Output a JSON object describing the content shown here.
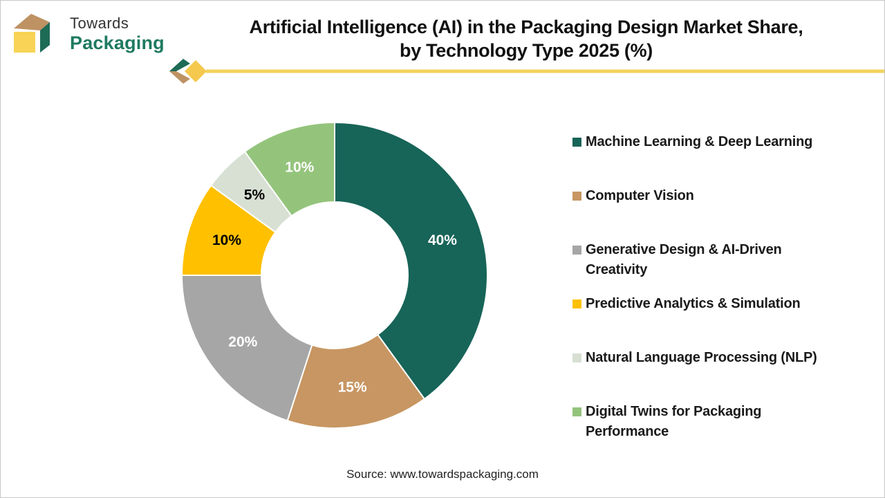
{
  "logo": {
    "towards": "Towards",
    "packaging": "Packaging",
    "colors": {
      "box_top": "#BE9263",
      "box_side": "#1E6B56",
      "box_front": "#F8D355",
      "wordmark_green": "#1E7A60"
    }
  },
  "header": {
    "title_line1": "Artificial Intelligence (AI) in the Packaging Design Market Share,",
    "title_line2": "by Technology Type 2025 (%)",
    "underline_color": "#F2D35C"
  },
  "chart_data": {
    "type": "pie",
    "subtype": "donut",
    "title": "Artificial Intelligence (AI) in the Packaging Design Market Share, by Technology Type 2025 (%)",
    "unit": "%",
    "rotation_start": "top",
    "direction": "clockwise",
    "legend_position": "right",
    "slices": [
      {
        "label": "Machine Learning & Deep Learning",
        "value": 40,
        "data_label": "40%",
        "color": "#176458",
        "label_color": "#FFFFFF"
      },
      {
        "label": "Computer Vision",
        "value": 15,
        "data_label": "15%",
        "color": "#C79662",
        "label_color": "#FFFFFF"
      },
      {
        "label": "Generative Design & AI-Driven Creativity",
        "legend_label": "Generative Design & AI-Driven\nCreativity",
        "value": 20,
        "data_label": "20%",
        "color": "#A6A6A6",
        "label_color": "#FFFFFF"
      },
      {
        "label": "Predictive Analytics & Simulation",
        "value": 10,
        "data_label": "10%",
        "color": "#FFC000",
        "label_color": "#000000"
      },
      {
        "label": "Natural Language Processing (NLP)",
        "value": 5,
        "data_label": "5%",
        "color": "#D7E0D3",
        "label_color": "#000000"
      },
      {
        "label": "Digital Twins for Packaging Performance",
        "legend_label": "Digital Twins for Packaging\nPerformance",
        "value": 10,
        "data_label": "10%",
        "color": "#94C47C",
        "label_color": "#FFFFFF"
      }
    ]
  },
  "footer": {
    "source": "Source: www.towardspackaging.com"
  }
}
